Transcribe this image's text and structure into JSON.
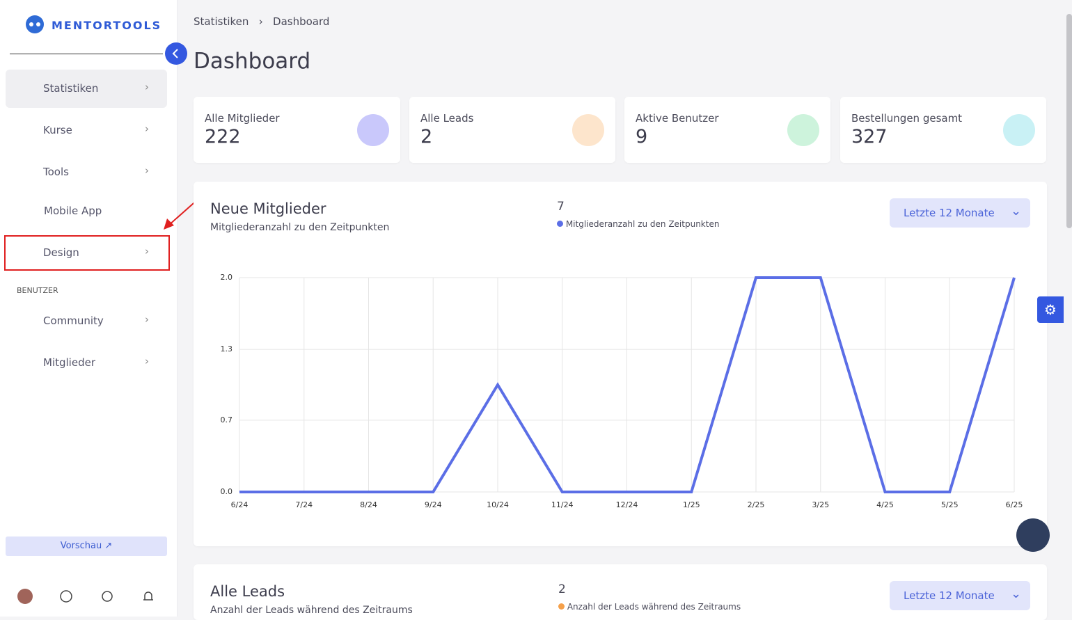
{
  "sidebar": {
    "logo": "MENTORTOOLS",
    "menu": [
      "Statistiken",
      "Kurse",
      "Tools",
      "Mobile App",
      "Design"
    ],
    "section": "BENUTZER",
    "section_menu": [
      "Community",
      "Mitglieder"
    ],
    "preview": "Vorschau ↗"
  },
  "header": {
    "breadcrumb": [
      "Statistiken",
      "Dashboard"
    ],
    "title": "Dashboard"
  },
  "stats": [
    {
      "label": "Alle Mitglieder",
      "value": 222
    },
    {
      "label": "Alle Leads",
      "value": 2
    },
    {
      "label": "Aktive Benutzer",
      "value": 9
    },
    {
      "label": "Bestellungen gesamt",
      "value": 327
    }
  ],
  "chart_data": {
    "type": "line",
    "title": "Neue Mitglieder",
    "subtitle": "Mitgliederanzahl zu den Zeitpunkten",
    "total": 7,
    "dropdown": "Letzte 12 Monate",
    "categories": [
      "6/24",
      "7/24",
      "8/24",
      "9/24",
      "10/24",
      "11/24",
      "12/24",
      "1/25",
      "2/25",
      "3/25",
      "4/25",
      "5/25",
      "6/25"
    ],
    "series": [
      {
        "name": "Mitgliederanzahl zu den Zeitpunkten",
        "color": "#5b6ee6",
        "values": [
          0,
          0,
          0,
          0,
          1,
          0,
          0,
          0,
          2,
          2,
          0,
          0,
          2
        ]
      }
    ],
    "ylim": [
      0,
      2
    ],
    "yticks": [
      {
        "value": 0,
        "label": "0.0"
      },
      {
        "value": 0.67,
        "label": "0.7"
      },
      {
        "value": 1.33,
        "label": "1.3"
      },
      {
        "value": 2,
        "label": "2.0"
      }
    ],
    "grid": true
  },
  "leads_card": {
    "title": "Alle Leads",
    "subtitle": "Anzahl der Leads während des Zeitraums",
    "total": 2,
    "legend": "Anzahl der Leads während des Zeitraums",
    "dropdown": "Letzte 12 Monate"
  }
}
